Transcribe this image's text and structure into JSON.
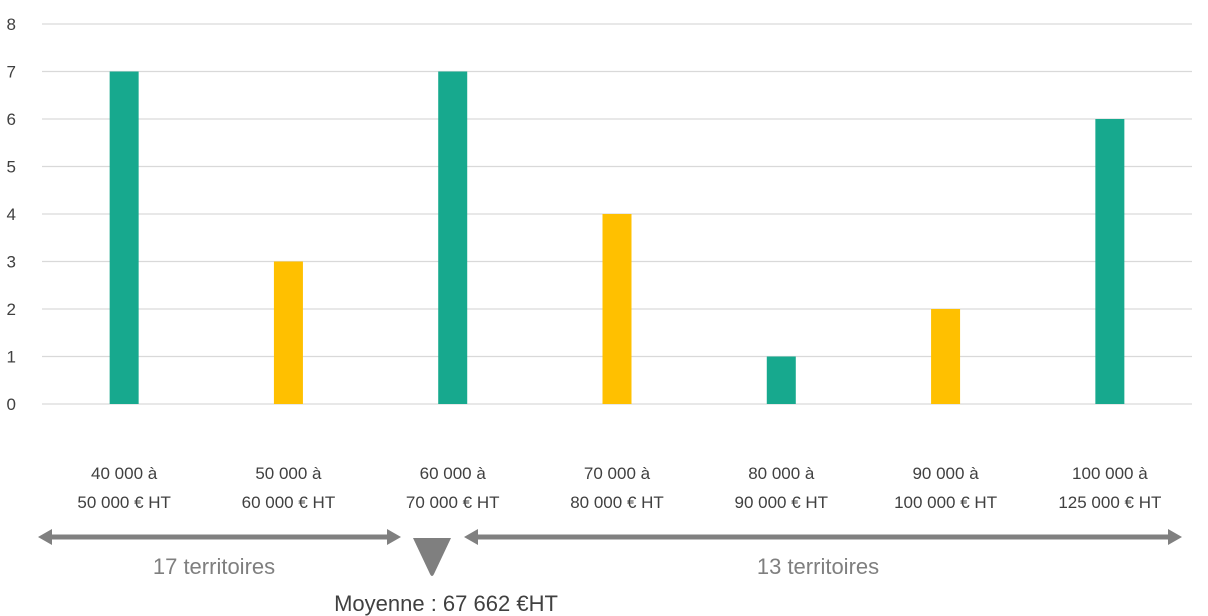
{
  "chart_data": {
    "type": "bar",
    "title": "",
    "xlabel": "",
    "ylabel": "",
    "ylim": [
      0,
      8
    ],
    "yticks": [
      0,
      1,
      2,
      3,
      4,
      5,
      6,
      7,
      8
    ],
    "grid": true,
    "categories": [
      {
        "line1": "40 000 à",
        "line2": "50 000 € HT"
      },
      {
        "line1": "50 000 à",
        "line2": "60 000 € HT"
      },
      {
        "line1": "60 000 à",
        "line2": "70 000 € HT"
      },
      {
        "line1": "70 000 à",
        "line2": "80 000 € HT"
      },
      {
        "line1": "80 000 à",
        "line2": "90 000 € HT"
      },
      {
        "line1": "90 000 à",
        "line2": "100 000 € HT"
      },
      {
        "line1": "100 000 à",
        "line2": "125 000 € HT"
      }
    ],
    "values": [
      7,
      3,
      7,
      4,
      1,
      2,
      6
    ],
    "bar_colors": [
      "#17a98e",
      "#ffc000",
      "#17a98e",
      "#ffc000",
      "#17a98e",
      "#ffc000",
      "#17a98e"
    ],
    "annotations": {
      "left_group_label": "17 territoires",
      "right_group_label": "13 territoires",
      "average_label": "Moyenne : 67 662 €HT"
    },
    "colors": {
      "grid": "#d9d9d9",
      "arrow": "#808080",
      "text": "#404040",
      "group_text": "#7f7f7f"
    }
  }
}
